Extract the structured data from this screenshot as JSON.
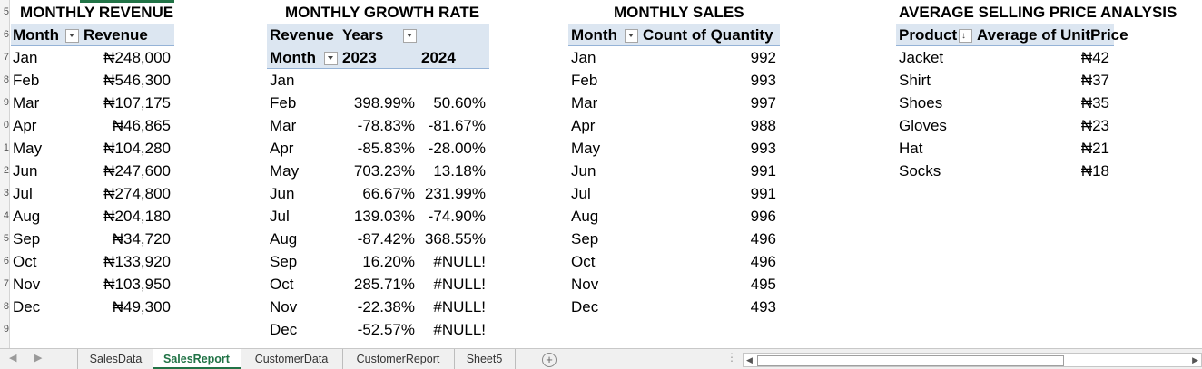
{
  "row_numbers": [
    "5",
    "6",
    "7",
    "8",
    "9",
    "0",
    "1",
    "2",
    "3",
    "4",
    "5",
    "6",
    "7",
    "8",
    "9"
  ],
  "revenue": {
    "title": "MONTHLY REVENUE",
    "col_month": "Month",
    "col_revenue": "Revenue",
    "rows": [
      {
        "m": "Jan",
        "v": "₦248,000"
      },
      {
        "m": "Feb",
        "v": "₦546,300"
      },
      {
        "m": "Mar",
        "v": "₦107,175"
      },
      {
        "m": "Apr",
        "v": "₦46,865"
      },
      {
        "m": "May",
        "v": "₦104,280"
      },
      {
        "m": "Jun",
        "v": "₦247,600"
      },
      {
        "m": "Jul",
        "v": "₦274,800"
      },
      {
        "m": "Aug",
        "v": "₦204,180"
      },
      {
        "m": "Sep",
        "v": "₦34,720"
      },
      {
        "m": "Oct",
        "v": "₦133,920"
      },
      {
        "m": "Nov",
        "v": "₦103,950"
      },
      {
        "m": "Dec",
        "v": "₦49,300"
      }
    ]
  },
  "growth": {
    "title": "MONTHLY GROWTH RATE",
    "label_revenue": "Revenue",
    "label_years": "Years",
    "label_month": "Month",
    "year1": "2023",
    "year2": "2024",
    "rows": [
      {
        "m": "Jan",
        "a": "",
        "b": ""
      },
      {
        "m": "Feb",
        "a": "398.99%",
        "b": "50.60%"
      },
      {
        "m": "Mar",
        "a": "-78.83%",
        "b": "-81.67%"
      },
      {
        "m": "Apr",
        "a": "-85.83%",
        "b": "-28.00%"
      },
      {
        "m": "May",
        "a": "703.23%",
        "b": "13.18%"
      },
      {
        "m": "Jun",
        "a": "66.67%",
        "b": "231.99%"
      },
      {
        "m": "Jul",
        "a": "139.03%",
        "b": "-74.90%"
      },
      {
        "m": "Aug",
        "a": "-87.42%",
        "b": "368.55%"
      },
      {
        "m": "Sep",
        "a": "16.20%",
        "b": "#NULL!"
      },
      {
        "m": "Oct",
        "a": "285.71%",
        "b": "#NULL!"
      },
      {
        "m": "Nov",
        "a": "-22.38%",
        "b": "#NULL!"
      },
      {
        "m": "Dec",
        "a": "-52.57%",
        "b": "#NULL!"
      }
    ]
  },
  "sales": {
    "title": "MONTHLY SALES",
    "col_month": "Month",
    "col_qty": "Count of Quantity",
    "rows": [
      {
        "m": "Jan",
        "v": "992"
      },
      {
        "m": "Feb",
        "v": "993"
      },
      {
        "m": "Mar",
        "v": "997"
      },
      {
        "m": "Apr",
        "v": "988"
      },
      {
        "m": "May",
        "v": "993"
      },
      {
        "m": "Jun",
        "v": "991"
      },
      {
        "m": "Jul",
        "v": "991"
      },
      {
        "m": "Aug",
        "v": "996"
      },
      {
        "m": "Sep",
        "v": "496"
      },
      {
        "m": "Oct",
        "v": "496"
      },
      {
        "m": "Nov",
        "v": "495"
      },
      {
        "m": "Dec",
        "v": "493"
      }
    ]
  },
  "asp": {
    "title": "AVERAGE SELLING PRICE ANALYSIS",
    "col_product": "Product",
    "col_price": "Average of UnitPrice",
    "rows": [
      {
        "p": "Jacket",
        "v": "₦42"
      },
      {
        "p": "Shirt",
        "v": "₦37"
      },
      {
        "p": "Shoes",
        "v": "₦35"
      },
      {
        "p": "Gloves",
        "v": "₦23"
      },
      {
        "p": "Hat",
        "v": "₦21"
      },
      {
        "p": "Socks",
        "v": "₦18"
      }
    ]
  },
  "tabs": {
    "items": [
      "SalesData",
      "SalesReport",
      "CustomerData",
      "CustomerReport",
      "Sheet5"
    ],
    "active": "SalesReport",
    "add_symbol": "+",
    "more_symbol": "⋮"
  },
  "colors": {
    "accent": "#217346",
    "pivot_header": "#dce6f1",
    "pivot_line": "#95b3d7"
  }
}
